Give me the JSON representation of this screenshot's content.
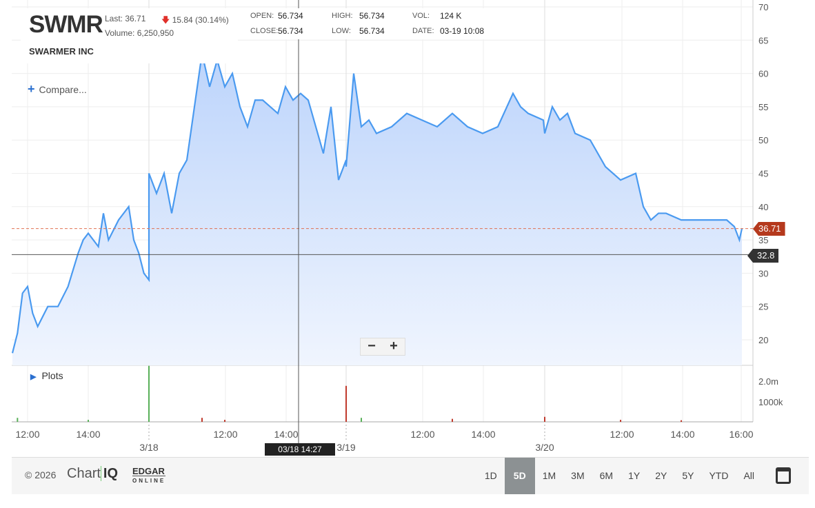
{
  "header": {
    "symbol": "SWMR",
    "company": "SWARMER INC",
    "last": "Last: 36.71",
    "change": "15.84 (30.14%)",
    "volume": "Volume: 6,250,950",
    "open_label": "OPEN:",
    "open": "56.734",
    "close_label": "CLOSE:",
    "close": "56.734",
    "high_label": "HIGH:",
    "high": "56.734",
    "low_label": "LOW:",
    "low": "56.734",
    "vol_label": "VOL:",
    "vol": "124 K",
    "date_label": "DATE:",
    "date": "03-19 10:08"
  },
  "compare_label": "Compare...",
  "plots_label": "Plots",
  "zoom": {
    "out": "−",
    "in": "+"
  },
  "crosshair": {
    "time": "03/18 14:27",
    "price": "32.8"
  },
  "last_price_tag": "36.71",
  "colors": {
    "line": "#4a9af0",
    "fill": "#bcd4fb",
    "last": "#b5391d",
    "down": "#e0302a",
    "vol_up": "#58b058",
    "vol_down": "#c0392b"
  },
  "chart_data": {
    "type": "area",
    "ylim": [
      15,
      70
    ],
    "yticks": [
      "20",
      "25",
      "30",
      "35",
      "40",
      "45",
      "50",
      "55",
      "60",
      "65",
      "70"
    ],
    "xticks": [
      "12:00",
      "14:00",
      "12:00",
      "14:00",
      "12:00",
      "14:00",
      "12:00",
      "14:00",
      "16:00"
    ],
    "dates": [
      "3/18",
      "3/19",
      "3/20"
    ],
    "volume_ticks": [
      "2.0m",
      "1000k"
    ],
    "series": [
      [
        "03/17 11:30",
        18
      ],
      [
        "03/17 11:40",
        21
      ],
      [
        "03/17 11:50",
        27
      ],
      [
        "03/17 12:00",
        28
      ],
      [
        "03/17 12:10",
        24
      ],
      [
        "03/17 12:20",
        22
      ],
      [
        "03/17 12:40",
        25
      ],
      [
        "03/17 13:00",
        25
      ],
      [
        "03/17 13:20",
        28
      ],
      [
        "03/17 13:40",
        33
      ],
      [
        "03/17 13:50",
        35
      ],
      [
        "03/17 14:00",
        36
      ],
      [
        "03/17 14:20",
        34
      ],
      [
        "03/17 14:30",
        39
      ],
      [
        "03/17 14:40",
        35
      ],
      [
        "03/17 15:00",
        38
      ],
      [
        "03/17 15:20",
        40
      ],
      [
        "03/17 15:30",
        35
      ],
      [
        "03/17 15:40",
        33
      ],
      [
        "03/17 15:50",
        30
      ],
      [
        "03/17 16:00",
        29
      ],
      [
        "03/18 09:30",
        45
      ],
      [
        "03/18 09:45",
        42
      ],
      [
        "03/18 10:00",
        45
      ],
      [
        "03/18 10:15",
        39
      ],
      [
        "03/18 10:30",
        45
      ],
      [
        "03/18 10:45",
        47
      ],
      [
        "03/18 11:00",
        55
      ],
      [
        "03/18 11:15",
        63
      ],
      [
        "03/18 11:30",
        58
      ],
      [
        "03/18 11:45",
        62
      ],
      [
        "03/18 12:00",
        58
      ],
      [
        "03/18 12:15",
        60
      ],
      [
        "03/18 12:30",
        55
      ],
      [
        "03/18 12:45",
        52
      ],
      [
        "03/18 13:00",
        56
      ],
      [
        "03/18 13:15",
        56
      ],
      [
        "03/18 13:30",
        55
      ],
      [
        "03/18 13:45",
        54
      ],
      [
        "03/18 14:00",
        58
      ],
      [
        "03/18 14:15",
        56
      ],
      [
        "03/18 14:30",
        57
      ],
      [
        "03/18 14:45",
        56
      ],
      [
        "03/18 15:00",
        52
      ],
      [
        "03/18 15:15",
        48
      ],
      [
        "03/18 15:30",
        55
      ],
      [
        "03/18 15:45",
        44
      ],
      [
        "03/18 16:00",
        47
      ],
      [
        "03/19 09:30",
        46
      ],
      [
        "03/19 09:45",
        60
      ],
      [
        "03/19 10:00",
        52
      ],
      [
        "03/19 10:15",
        53
      ],
      [
        "03/19 10:30",
        51
      ],
      [
        "03/19 11:00",
        52
      ],
      [
        "03/19 11:30",
        54
      ],
      [
        "03/19 12:00",
        53
      ],
      [
        "03/19 12:30",
        52
      ],
      [
        "03/19 13:00",
        54
      ],
      [
        "03/19 13:30",
        52
      ],
      [
        "03/19 14:00",
        51
      ],
      [
        "03/19 14:30",
        52
      ],
      [
        "03/19 15:00",
        57
      ],
      [
        "03/19 15:15",
        55
      ],
      [
        "03/19 15:30",
        54
      ],
      [
        "03/19 16:00",
        53
      ],
      [
        "03/20 09:30",
        51
      ],
      [
        "03/20 09:45",
        55
      ],
      [
        "03/20 10:00",
        53
      ],
      [
        "03/20 10:15",
        54
      ],
      [
        "03/20 10:30",
        51
      ],
      [
        "03/20 11:00",
        50
      ],
      [
        "03/20 11:30",
        46
      ],
      [
        "03/20 12:00",
        44
      ],
      [
        "03/20 12:30",
        45
      ],
      [
        "03/20 12:45",
        40
      ],
      [
        "03/20 13:00",
        38
      ],
      [
        "03/20 13:15",
        39
      ],
      [
        "03/20 13:30",
        39
      ],
      [
        "03/20 14:00",
        38
      ],
      [
        "03/20 14:30",
        38
      ],
      [
        "03/20 15:00",
        38
      ],
      [
        "03/20 15:30",
        38
      ],
      [
        "03/20 15:45",
        37
      ],
      [
        "03/20 15:55",
        35
      ],
      [
        "03/20 16:00",
        36.71
      ]
    ],
    "volume": [
      [
        "03/17 11:40",
        0.2,
        "up"
      ],
      [
        "03/17 14:00",
        0.1,
        "up"
      ],
      [
        "03/18 09:30",
        2.8,
        "up"
      ],
      [
        "03/18 11:15",
        0.2,
        "down"
      ],
      [
        "03/18 12:00",
        0.1,
        "down"
      ],
      [
        "03/19 09:30",
        1.8,
        "down"
      ],
      [
        "03/19 10:00",
        0.2,
        "up"
      ],
      [
        "03/19 13:00",
        0.15,
        "down"
      ],
      [
        "03/20 09:30",
        0.25,
        "down"
      ],
      [
        "03/20 12:00",
        0.1,
        "down"
      ],
      [
        "03/20 14:00",
        0.08,
        "down"
      ]
    ]
  },
  "footer": {
    "copyright": "© 2026",
    "chartiq_a": "Chart",
    "chartiq_b": "IQ",
    "edgar": "EDGAR",
    "edgar_sub": "ONLINE",
    "ranges": [
      "1D",
      "5D",
      "1M",
      "3M",
      "6M",
      "1Y",
      "2Y",
      "5Y",
      "YTD",
      "All"
    ],
    "active_range": "5D"
  }
}
